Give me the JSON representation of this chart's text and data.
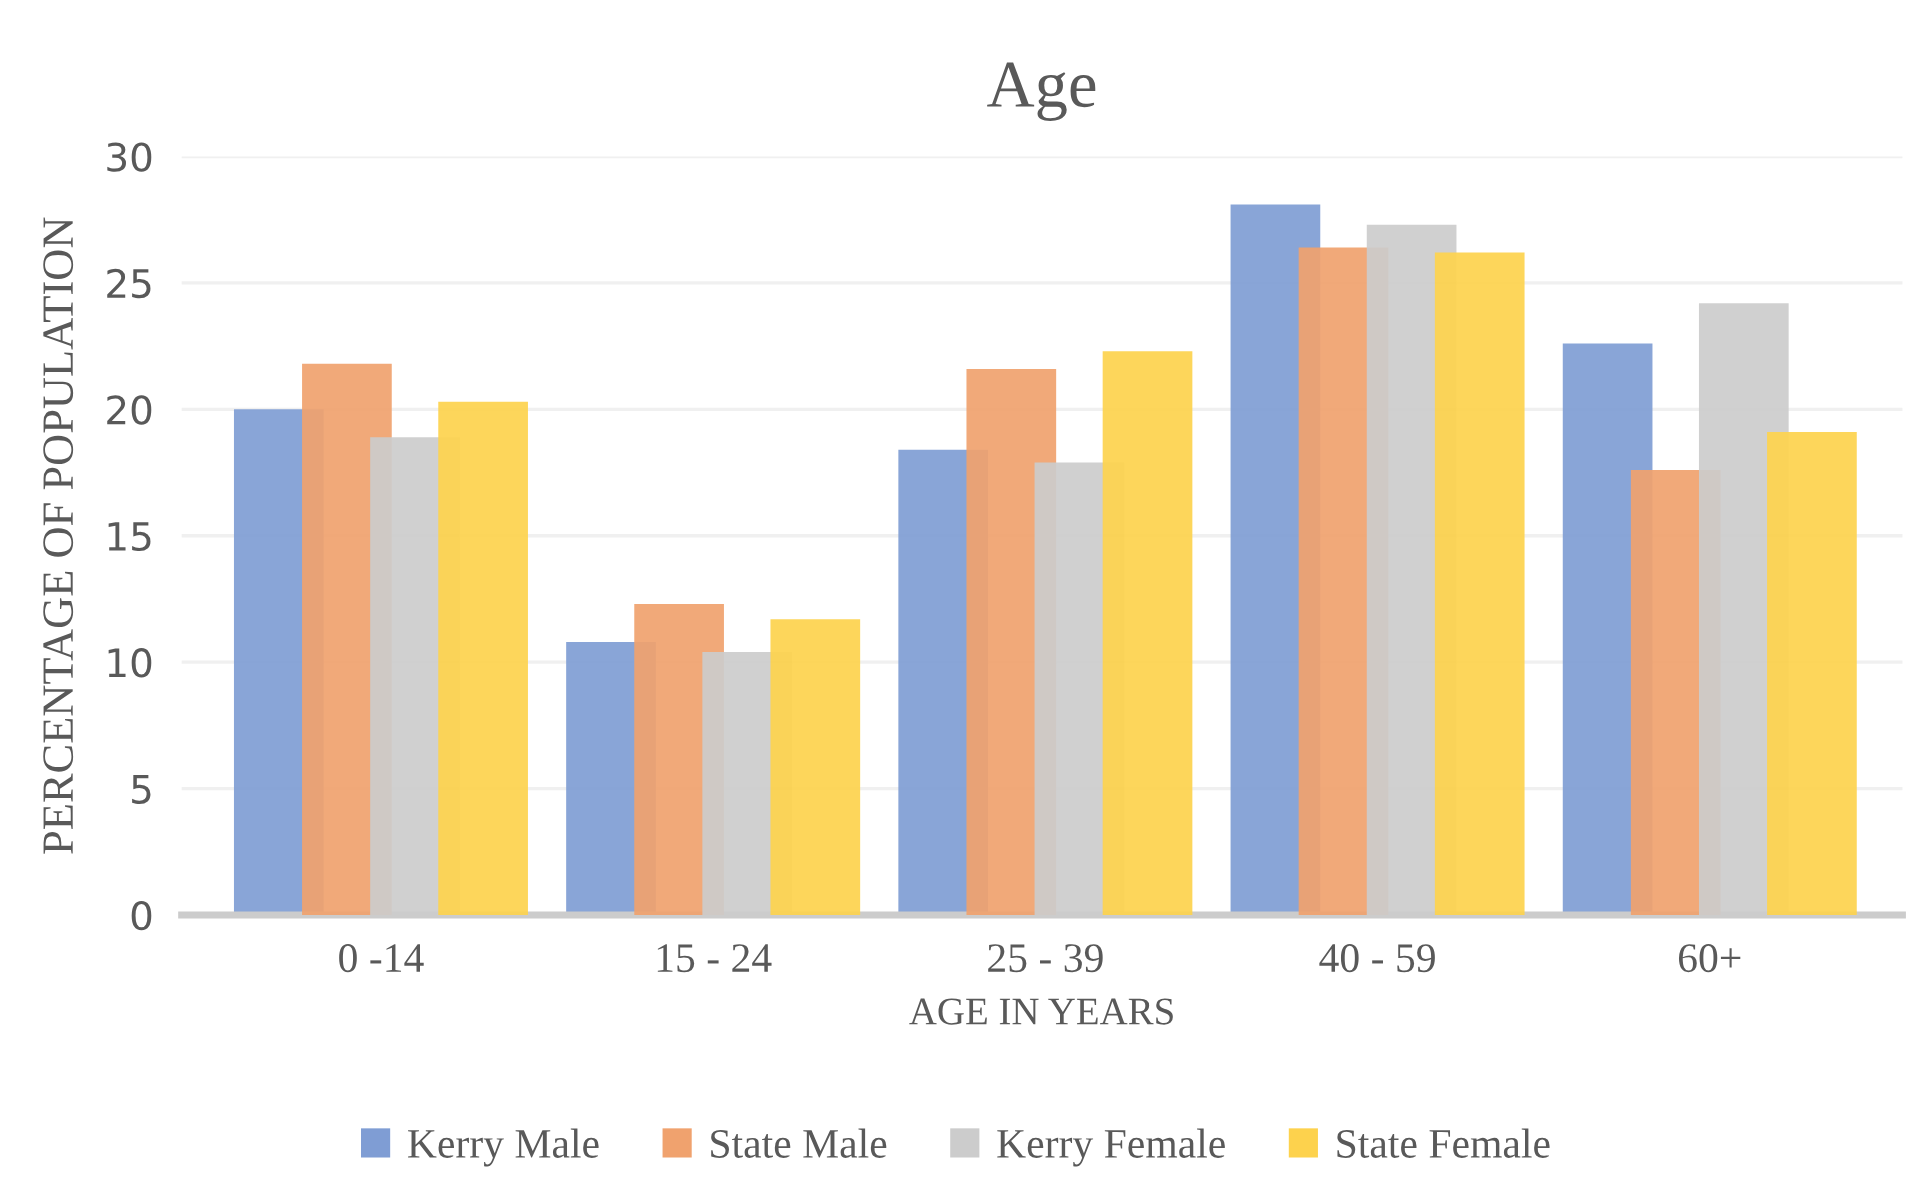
{
  "chart_data": {
    "type": "bar",
    "title": "Age",
    "xlabel": "AGE IN YEARS",
    "ylabel": "PERCENTAGE OF POPULATION",
    "categories": [
      "0 -14",
      "15 - 24",
      "25 - 39",
      "40 - 59",
      "60+"
    ],
    "series": [
      {
        "name": "Kerry Male",
        "color": "#7f9dd4",
        "values": [
          20.0,
          10.8,
          18.4,
          28.1,
          22.6
        ]
      },
      {
        "name": "State Male",
        "color": "#f0a26e",
        "values": [
          21.8,
          12.3,
          21.6,
          26.4,
          17.6
        ]
      },
      {
        "name": "Kerry Female",
        "color": "#cccccc",
        "values": [
          18.9,
          10.4,
          17.9,
          27.3,
          24.2
        ]
      },
      {
        "name": "State Female",
        "color": "#fdd24d",
        "values": [
          20.3,
          11.7,
          22.3,
          26.2,
          19.1
        ]
      }
    ],
    "ylim": [
      0,
      30
    ],
    "yticks": [
      0,
      5,
      10,
      15,
      20,
      25,
      30
    ],
    "grid": "y",
    "legend": "bottom"
  }
}
